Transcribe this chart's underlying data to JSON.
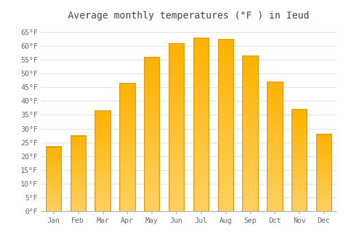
{
  "months": [
    "Jan",
    "Feb",
    "Mar",
    "Apr",
    "May",
    "Jun",
    "Jul",
    "Aug",
    "Sep",
    "Oct",
    "Nov",
    "Dec"
  ],
  "values": [
    23.5,
    27.5,
    36.5,
    46.5,
    56.0,
    61.0,
    63.0,
    62.5,
    56.5,
    47.0,
    37.0,
    28.0
  ],
  "bar_color_top": "#FFB300",
  "bar_color_bottom": "#FFD060",
  "bar_edge_color": "#E09000",
  "background_color": "#FFFFFF",
  "grid_color": "#E0E0E8",
  "title": "Average monthly temperatures (°F ) in Ieud",
  "title_fontsize": 10,
  "ylim": [
    0,
    68
  ],
  "yticks": [
    0,
    5,
    10,
    15,
    20,
    25,
    30,
    35,
    40,
    45,
    50,
    55,
    60,
    65
  ],
  "ytick_labels": [
    "0°F",
    "5°F",
    "10°F",
    "15°F",
    "20°F",
    "25°F",
    "30°F",
    "35°F",
    "40°F",
    "45°F",
    "50°F",
    "55°F",
    "60°F",
    "65°F"
  ],
  "tick_fontsize": 7.5,
  "font_family": "monospace"
}
